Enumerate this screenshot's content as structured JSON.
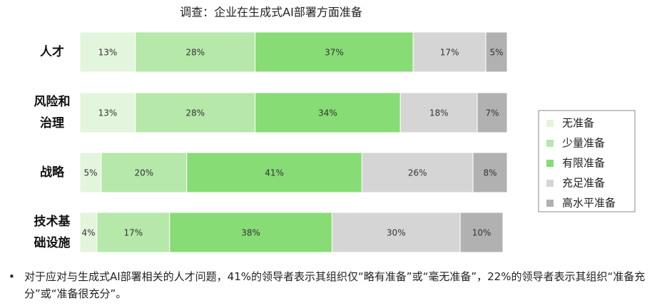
{
  "chart_data": {
    "type": "stacked_bar_horizontal",
    "title": "调查：企业在生成式AI部署方面准备",
    "categories": [
      "人才",
      "风险和治理",
      "战略",
      "技术基础设施"
    ],
    "xlim": [
      0,
      100
    ],
    "series": [
      {
        "name": "无准备",
        "color": "#e3f5dd",
        "values": [
          13,
          13,
          5,
          4
        ],
        "value_labels": [
          "13%",
          "13%",
          "5%",
          "4%"
        ]
      },
      {
        "name": "少量准备",
        "color": "#b5e8a9",
        "values": [
          28,
          28,
          20,
          17
        ],
        "value_labels": [
          "28%",
          "28%",
          "20%",
          "17%"
        ]
      },
      {
        "name": "有限准备",
        "color": "#87dc75",
        "values": [
          37,
          34,
          41,
          38
        ],
        "value_labels": [
          "37%",
          "34%",
          "41%",
          "38%"
        ]
      },
      {
        "name": "充足准备",
        "color": "#d5d5d5",
        "values": [
          17,
          18,
          26,
          30
        ],
        "value_labels": [
          "17%",
          "18%",
          "26%",
          "30%"
        ]
      },
      {
        "name": "高水平准备",
        "color": "#b1b1b1",
        "values": [
          5,
          7,
          8,
          10
        ],
        "value_labels": [
          "5%",
          "7%",
          "8%",
          "10%"
        ]
      }
    ],
    "note": "对于应对与生成式AI部署相关的人才问题，41%的领导者表示其组织仅“略有准备”或“毫无准备”，22%的领导者表示其组织“准备充分”或“准备很充分”。"
  }
}
